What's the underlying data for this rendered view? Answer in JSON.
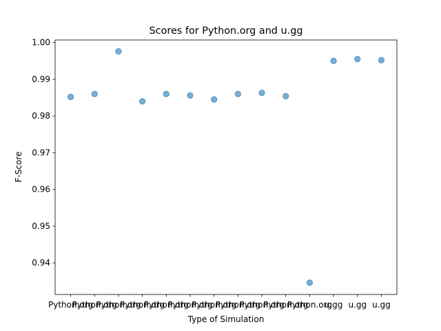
{
  "chart_data": {
    "type": "scatter",
    "title": "Scores for Python.org and u.gg",
    "xlabel": "Type of Simulation",
    "ylabel": "F-Score",
    "categories": [
      "Python.org",
      "Python.org",
      "Python.org",
      "Python.org",
      "Python.org",
      "Python.org",
      "Python.org",
      "Python.org",
      "Python.org",
      "Python.org",
      "Python.org",
      "u.gg",
      "u.gg",
      "u.gg"
    ],
    "values": [
      0.9852,
      0.986,
      0.9976,
      0.984,
      0.986,
      0.9856,
      0.9845,
      0.986,
      0.9863,
      0.9854,
      0.9346,
      0.995,
      0.9955,
      0.9952
    ],
    "ylim": [
      0.9314,
      1.0007
    ],
    "yticks": [
      0.94,
      0.95,
      0.96,
      0.97,
      0.98,
      0.99,
      1.0
    ],
    "ytick_labels": [
      "0.94",
      "0.95",
      "0.96",
      "0.97",
      "0.98",
      "0.99",
      "1.00"
    ],
    "marker_color": "#1f77b4",
    "marker_alpha": 0.6,
    "grid": false,
    "legend": "none"
  }
}
